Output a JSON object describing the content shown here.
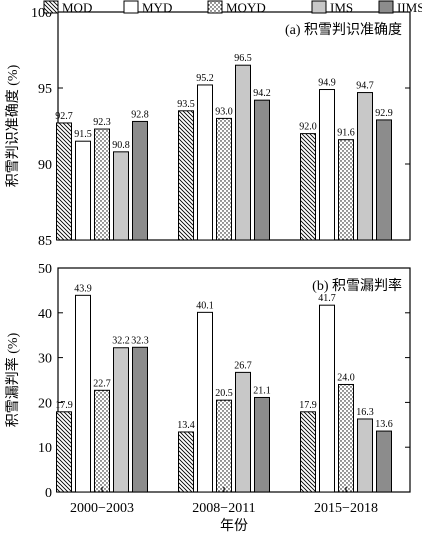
{
  "chart_data": {
    "type": "bar",
    "legend": [
      "MOD",
      "MYD",
      "MOYD",
      "IMS",
      "IIMS"
    ],
    "categories": [
      "2000−2003",
      "2008−2011",
      "2015−2018"
    ],
    "xlabel": "年份",
    "panels": [
      {
        "title": "(a) 积雪判识准确度",
        "ylabel": "积雪判识准确度 (%)",
        "ylim": [
          85,
          100
        ],
        "yticks": [
          "85",
          "90",
          "95",
          "100"
        ],
        "series": [
          {
            "name": "MOD",
            "values": [
              92.7,
              93.5,
              92.0
            ],
            "labels": [
              "92.7",
              "93.5",
              "92.0"
            ]
          },
          {
            "name": "MYD",
            "values": [
              91.5,
              95.2,
              94.9
            ],
            "labels": [
              "91.5",
              "95.2",
              "94.9"
            ]
          },
          {
            "name": "MOYD",
            "values": [
              92.3,
              93.0,
              91.6
            ],
            "labels": [
              "92.3",
              "93.0",
              "91.6"
            ]
          },
          {
            "name": "IMS",
            "values": [
              90.8,
              96.5,
              94.7
            ],
            "labels": [
              "90.8",
              "96.5",
              "94.7"
            ]
          },
          {
            "name": "IIMS",
            "values": [
              92.8,
              94.2,
              92.9
            ],
            "labels": [
              "92.8",
              "94.2",
              "92.9"
            ]
          }
        ]
      },
      {
        "title": "(b) 积雪漏判率",
        "ylabel": "积雪漏判率 (%)",
        "ylim": [
          0,
          50
        ],
        "yticks": [
          "0",
          "10",
          "20",
          "30",
          "40",
          "50"
        ],
        "series": [
          {
            "name": "MOD",
            "values": [
              17.9,
              13.4,
              17.9
            ],
            "labels": [
              "17.9",
              "13.4",
              "17.9"
            ]
          },
          {
            "name": "MYD",
            "values": [
              43.9,
              40.1,
              41.7
            ],
            "labels": [
              "43.9",
              "40.1",
              "41.7"
            ]
          },
          {
            "name": "MOYD",
            "values": [
              22.7,
              20.5,
              24.0
            ],
            "labels": [
              "22.7",
              "20.5",
              "24.0"
            ]
          },
          {
            "name": "IMS",
            "values": [
              32.2,
              26.7,
              16.3
            ],
            "labels": [
              "32.2",
              "26.7",
              "16.3"
            ]
          },
          {
            "name": "IIMS",
            "values": [
              32.3,
              21.1,
              13.6
            ],
            "labels": [
              "32.3",
              "21.1",
              "13.6"
            ]
          }
        ]
      }
    ]
  }
}
